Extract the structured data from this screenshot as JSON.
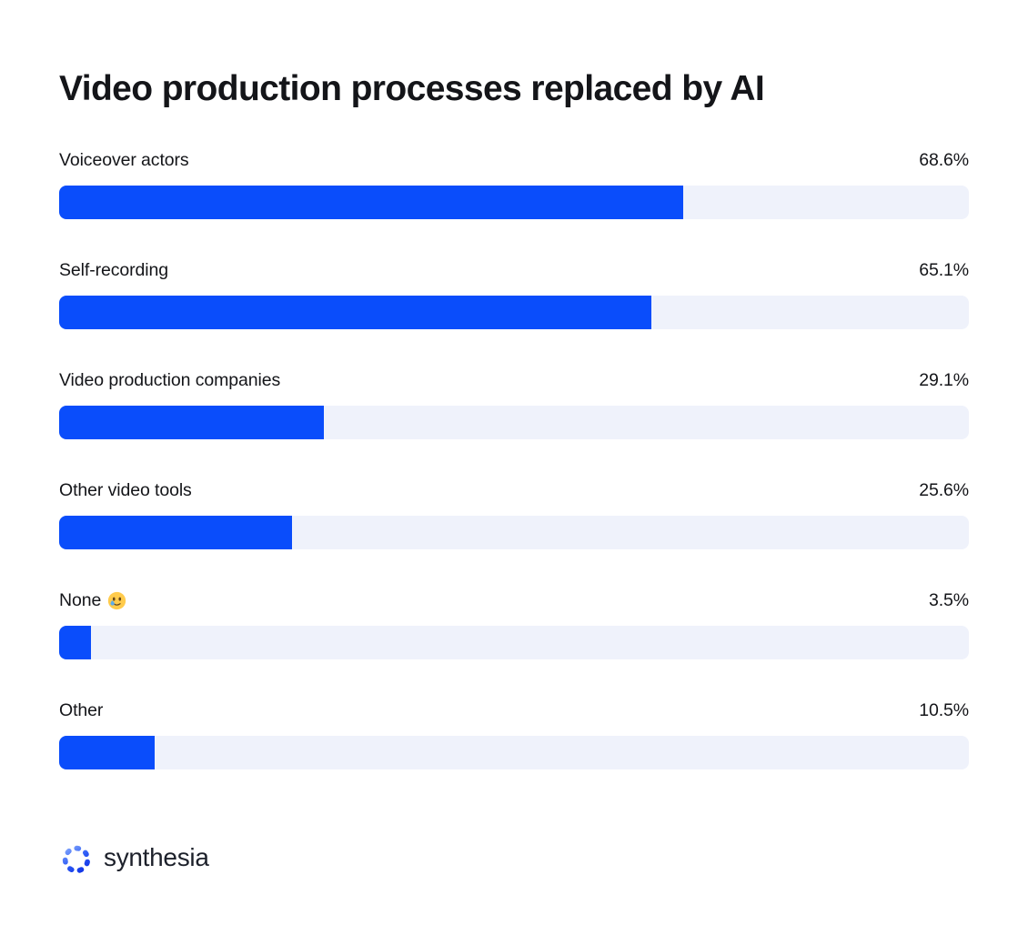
{
  "title": "Video production processes replaced by AI",
  "brand": {
    "name": "synthesia",
    "logo_icon": "synthesia-ring-logo"
  },
  "colors": {
    "bar_fill": "#0a4dfb",
    "bar_track": "#eff2fb",
    "text": "#141519",
    "logo_gradient_start": "#86a9fb",
    "logo_gradient_end": "#0d2fe4"
  },
  "chart_data": {
    "type": "bar",
    "orientation": "horizontal",
    "title": "Video production processes replaced by AI",
    "categories": [
      "Voiceover actors",
      "Self-recording",
      "Video production companies",
      "Other video tools",
      "None 🥲",
      "Other"
    ],
    "values": [
      68.6,
      65.1,
      29.1,
      25.6,
      3.5,
      10.5
    ],
    "value_labels": [
      "68.6%",
      "65.1%",
      "29.1%",
      "25.6%",
      "3.5%",
      "10.5%"
    ],
    "unit": "%",
    "xlim": [
      0,
      100
    ],
    "grid": false,
    "legend": false,
    "value_label_position": "right-aligned above bar"
  },
  "rows": [
    {
      "label": "Voiceover actors",
      "value": 68.6,
      "display": "68.6%",
      "emoji": null
    },
    {
      "label": "Self-recording",
      "value": 65.1,
      "display": "65.1%",
      "emoji": null
    },
    {
      "label": "Video production companies",
      "value": 29.1,
      "display": "29.1%",
      "emoji": null
    },
    {
      "label": "Other video tools",
      "value": 25.6,
      "display": "25.6%",
      "emoji": null
    },
    {
      "label": "None",
      "value": 3.5,
      "display": "3.5%",
      "emoji": "🥲",
      "emoji_icon": "smiling-face-with-tear-emoji"
    },
    {
      "label": "Other",
      "value": 10.5,
      "display": "10.5%",
      "emoji": null
    }
  ]
}
